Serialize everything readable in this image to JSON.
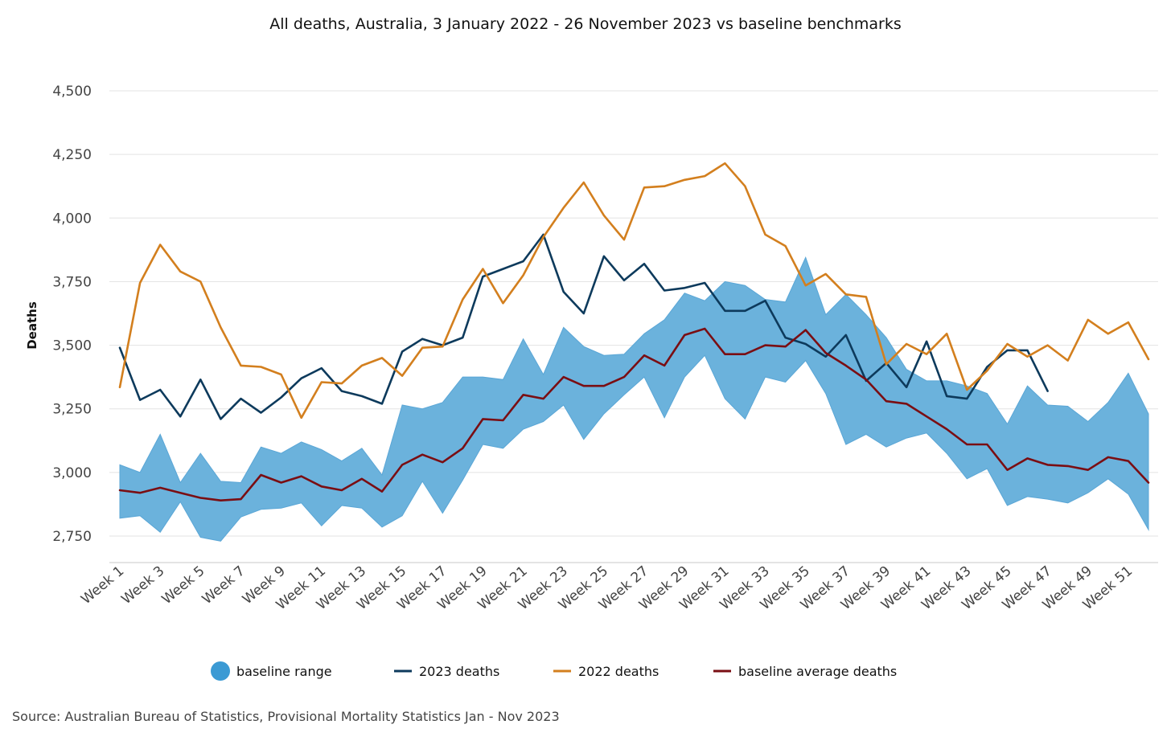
{
  "chart_data": {
    "type": "line",
    "title": "All deaths, Australia, 3 January 2022 - 26 November 2023 vs baseline benchmarks",
    "xlabel": "",
    "ylabel": "Deaths",
    "ylim": [
      2650,
      4500
    ],
    "yticks": [
      2750,
      3000,
      3250,
      3500,
      3750,
      4000,
      4250,
      4500
    ],
    "ytick_labels": [
      "2,750",
      "3,000",
      "3,250",
      "3,500",
      "3,750",
      "4,000",
      "4,250",
      "4,500"
    ],
    "x_tick_labels": [
      "Week 1",
      "Week 3",
      "Week 5",
      "Week 7",
      "Week 9",
      "Week 11",
      "Week 13",
      "Week 15",
      "Week 17",
      "Week 19",
      "Week 21",
      "Week 23",
      "Week 25",
      "Week 27",
      "Week 29",
      "Week 31",
      "Week 33",
      "Week 35",
      "Week 37",
      "Week 39",
      "Week 41",
      "Week 43",
      "Week 45",
      "Week 47",
      "Week 49",
      "Week 51"
    ],
    "grid": true,
    "legend_position": "bottom",
    "source": "Source: Australian Bureau of Statistics, Provisional Mortality Statistics Jan - Nov 2023",
    "series": [
      {
        "name": "baseline range",
        "kind": "band",
        "color": "#6bb2dc",
        "legend_color": "#3b9ad4",
        "upper": [
          3030,
          3000,
          3150,
          2960,
          3075,
          2965,
          2960,
          3100,
          3075,
          3120,
          3090,
          3045,
          3095,
          2990,
          3265,
          3250,
          3275,
          3375,
          3375,
          3365,
          3525,
          3385,
          3570,
          3495,
          3460,
          3465,
          3545,
          3600,
          3705,
          3675,
          3750,
          3735,
          3680,
          3670,
          3845,
          3620,
          3700,
          3620,
          3530,
          3405,
          3360,
          3360,
          3340,
          3310,
          3190,
          3340,
          3265,
          3260,
          3200,
          3275,
          3390,
          3230
        ],
        "lower": [
          2820,
          2830,
          2765,
          2885,
          2745,
          2730,
          2825,
          2855,
          2860,
          2880,
          2790,
          2870,
          2860,
          2785,
          2830,
          2965,
          2840,
          2970,
          3110,
          3095,
          3170,
          3200,
          3265,
          3130,
          3230,
          3305,
          3375,
          3215,
          3375,
          3460,
          3290,
          3210,
          3375,
          3355,
          3440,
          3310,
          3110,
          3150,
          3100,
          3135,
          3155,
          3075,
          2975,
          3015,
          2870,
          2905,
          2895,
          2880,
          2920,
          2975,
          2915,
          2775
        ]
      },
      {
        "name": "2023 deaths",
        "kind": "line",
        "color": "#0d3a5c",
        "values": [
          3490,
          3285,
          3325,
          3220,
          3365,
          3210,
          3290,
          3235,
          3295,
          3370,
          3410,
          3320,
          3300,
          3270,
          3475,
          3525,
          3500,
          3530,
          3770,
          3800,
          3830,
          3935,
          3710,
          3625,
          3850,
          3755,
          3820,
          3715,
          3725,
          3745,
          3635,
          3635,
          3675,
          3530,
          3505,
          3455,
          3540,
          3360,
          3430,
          3335,
          3515,
          3300,
          3290,
          3415,
          3480,
          3480,
          3320
        ]
      },
      {
        "name": "2022 deaths",
        "kind": "line",
        "color": "#d37f1e",
        "values": [
          3335,
          3745,
          3895,
          3790,
          3750,
          3570,
          3420,
          3415,
          3385,
          3215,
          3355,
          3350,
          3420,
          3450,
          3380,
          3490,
          3495,
          3680,
          3800,
          3665,
          3775,
          3925,
          4040,
          4140,
          4010,
          3915,
          4120,
          4125,
          4150,
          4165,
          4215,
          4125,
          3935,
          3890,
          3735,
          3780,
          3700,
          3690,
          3425,
          3505,
          3465,
          3545,
          3325,
          3400,
          3505,
          3455,
          3500,
          3440,
          3600,
          3545,
          3590,
          3445
        ]
      },
      {
        "name": "baseline average deaths",
        "kind": "line",
        "color": "#7a0e13",
        "values": [
          2930,
          2920,
          2940,
          2920,
          2900,
          2890,
          2895,
          2990,
          2960,
          2985,
          2945,
          2930,
          2975,
          2925,
          3030,
          3070,
          3040,
          3095,
          3210,
          3205,
          3305,
          3290,
          3375,
          3340,
          3340,
          3375,
          3460,
          3420,
          3540,
          3565,
          3465,
          3465,
          3500,
          3495,
          3560,
          3470,
          3420,
          3365,
          3280,
          3270,
          3220,
          3170,
          3110,
          3110,
          3010,
          3055,
          3030,
          3025,
          3010,
          3060,
          3045,
          2960
        ]
      }
    ]
  }
}
